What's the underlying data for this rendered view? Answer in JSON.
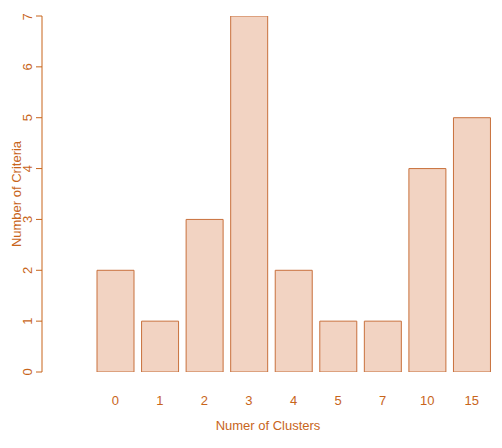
{
  "chart_data": {
    "type": "bar",
    "x_label": "Numer of Clusters",
    "y_label": "Number of Criteria",
    "categories": [
      "0",
      "1",
      "2",
      "3",
      "4",
      "5",
      "7",
      "10",
      "15"
    ],
    "values": [
      2,
      1,
      3,
      7,
      2,
      1,
      1,
      4,
      5
    ],
    "color": "#f2d3c2",
    "ylim": [
      0,
      7
    ],
    "yticks": [
      0,
      1,
      2,
      3,
      4,
      5,
      6,
      7
    ],
    "grid": false
  }
}
